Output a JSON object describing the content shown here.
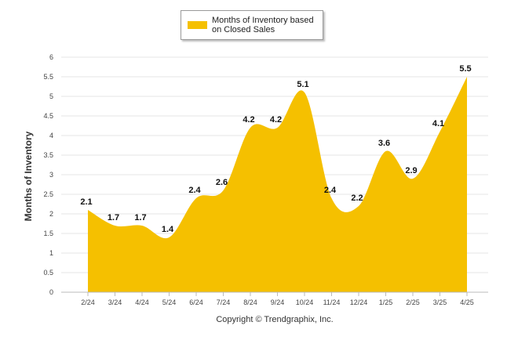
{
  "legend": {
    "label": "Months of Inventory based on Closed Sales"
  },
  "credit": "Copyright © Trendgraphix, Inc.",
  "chart_data": {
    "type": "area",
    "title": "",
    "xlabel": "",
    "ylabel": "Months of Inventory",
    "categories": [
      "2/24",
      "3/24",
      "4/24",
      "5/24",
      "6/24",
      "7/24",
      "8/24",
      "9/24",
      "10/24",
      "11/24",
      "12/24",
      "1/25",
      "2/25",
      "3/25",
      "4/25"
    ],
    "series": [
      {
        "name": "Months of Inventory based on Closed Sales",
        "values": [
          2.1,
          1.7,
          1.7,
          1.4,
          2.4,
          2.6,
          4.2,
          4.2,
          5.1,
          2.4,
          2.2,
          3.6,
          2.9,
          4.1,
          5.5
        ],
        "color": "#f5c000"
      }
    ],
    "ylim": [
      0,
      6
    ],
    "yticks": [
      0,
      0.5,
      1,
      1.5,
      2,
      2.5,
      3,
      3.5,
      4,
      4.5,
      5,
      5.5,
      6
    ],
    "grid": true,
    "legend_position": "top-center",
    "gridline_color": "#e6e6e6",
    "axis_color": "#bbbbbb"
  }
}
